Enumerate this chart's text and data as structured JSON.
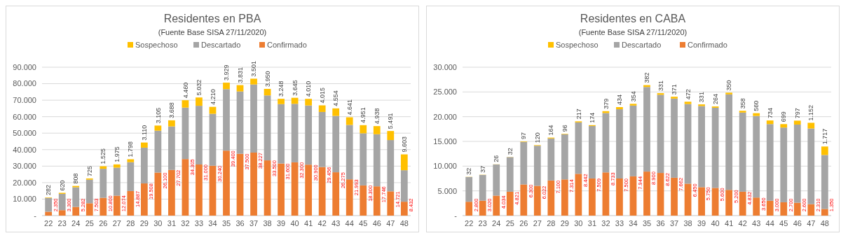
{
  "chart_data": [
    {
      "type": "bar",
      "title": "Residentes en PBA",
      "subtitle": "(Fuente Base SISA 27/11/2020)",
      "stacked": true,
      "legend": "top",
      "grid": "y",
      "categories": [
        "22",
        "23",
        "24",
        "25",
        "26",
        "27",
        "28",
        "29",
        "30",
        "31",
        "32",
        "33",
        "34",
        "35",
        "36",
        "37",
        "38",
        "39",
        "40",
        "41",
        "42",
        "43",
        "44",
        "45",
        "46",
        "47",
        "48"
      ],
      "ylim": [
        0,
        90000
      ],
      "yticks": [
        {
          "value": 0,
          "label": "-"
        },
        {
          "value": 10000,
          "label": "10.000"
        },
        {
          "value": 20000,
          "label": "20.000"
        },
        {
          "value": 30000,
          "label": "30.000"
        },
        {
          "value": 40000,
          "label": "40.000"
        },
        {
          "value": 50000,
          "label": "50.000"
        },
        {
          "value": 60000,
          "label": "60.000"
        },
        {
          "value": 70000,
          "label": "70.000"
        },
        {
          "value": 80000,
          "label": "80.000"
        },
        {
          "value": 90000,
          "label": "90.000"
        }
      ],
      "series": [
        {
          "name": "Confirmado",
          "color": "#ed7d31",
          "values": [
            2350,
            3300,
            5282,
            7503,
            10800,
            12074,
            14887,
            19508,
            26100,
            27702,
            34305,
            31000,
            30240,
            39400,
            37500,
            38227,
            33500,
            31600,
            32300,
            30900,
            29456,
            26275,
            21993,
            18300,
            17746,
            14721,
            8432
          ],
          "value_labels": [
            "2.350",
            "3.300",
            "5.282",
            "7.503",
            "10.800",
            "12.074",
            "14.887",
            "19.508",
            "26.100",
            "27.702",
            "34.305",
            "31.000",
            "30.240",
            "39.400",
            "37.500",
            "38.227",
            "33.500",
            "31.600",
            "32.300",
            "30.900",
            "29.456",
            "26.275",
            "21.993",
            "18.300",
            "17.746",
            "14.721",
            "8.432"
          ]
        },
        {
          "name": "Descartado",
          "color": "#a5a5a5",
          "values": [
            8400,
            9900,
            11900,
            14300,
            17600,
            17000,
            17500,
            21700,
            25400,
            26400,
            31200,
            35600,
            31500,
            37300,
            37800,
            41300,
            39400,
            36000,
            35500,
            35900,
            33400,
            34200,
            33000,
            31600,
            31600,
            31100,
            19100
          ]
        },
        {
          "name": "Sospechoso",
          "color": "#ffc000",
          "values": [
            282,
            620,
            808,
            725,
            1525,
            1975,
            1798,
            3110,
            3105,
            3688,
            4460,
            5032,
            4210,
            3929,
            3831,
            3501,
            3950,
            3248,
            3645,
            4010,
            4015,
            4554,
            4641,
            4951,
            4938,
            5491,
            9603
          ],
          "value_labels": [
            "282",
            "620",
            "808",
            "725",
            "1.525",
            "1.975",
            "1.798",
            "3.110",
            "3.105",
            "3.688",
            "4.460",
            "5.032",
            "4.210",
            "3.929",
            "3.831",
            "3.501",
            "3.950",
            "3.248",
            "3.645",
            "4.010",
            "4.015",
            "4.554",
            "4.641",
            "4.951",
            "4.938",
            "5.491",
            "9.603"
          ]
        }
      ]
    },
    {
      "type": "bar",
      "title": "Residentes en CABA",
      "subtitle": "(Fuente Base SISA 27/11/2020)",
      "stacked": true,
      "legend": "top",
      "grid": "y",
      "categories": [
        "22",
        "23",
        "24",
        "25",
        "26",
        "27",
        "28",
        "29",
        "30",
        "31",
        "32",
        "33",
        "34",
        "35",
        "36",
        "37",
        "38",
        "39",
        "40",
        "41",
        "42",
        "43",
        "44",
        "45",
        "46",
        "47",
        "48"
      ],
      "ylim": [
        0,
        30000
      ],
      "yticks": [
        {
          "value": 0,
          "label": "-"
        },
        {
          "value": 5000,
          "label": "5.000"
        },
        {
          "value": 10000,
          "label": "10.000"
        },
        {
          "value": 15000,
          "label": "15.000"
        },
        {
          "value": 20000,
          "label": "20.000"
        },
        {
          "value": 25000,
          "label": "25.000"
        },
        {
          "value": 30000,
          "label": "30.000"
        }
      ],
      "series": [
        {
          "name": "Confirmado",
          "color": "#ed7d31",
          "values": [
            2800,
            3020,
            4034,
            4821,
            6300,
            6022,
            7100,
            7314,
            8442,
            7509,
            8733,
            7500,
            7944,
            8900,
            8622,
            7662,
            6450,
            5750,
            5600,
            5200,
            4832,
            3650,
            3000,
            2700,
            2600,
            2310,
            1350
          ],
          "value_labels": [
            "2.800",
            "3.020",
            "4.034",
            "4.821",
            "6.300",
            "6.022",
            "7.100",
            "7.314",
            "8.442",
            "7.509",
            "8.733",
            "7.500",
            "7.944",
            "8.900",
            "8.622",
            "7.662",
            "6.450",
            "5.750",
            "5.600",
            "5.200",
            "4.832",
            "3.650",
            "3.000",
            "2.700",
            "2.600",
            "2.310",
            "1.350"
          ]
        },
        {
          "name": "Descartado",
          "color": "#a5a5a5",
          "values": [
            5000,
            5200,
            6300,
            7000,
            8600,
            8100,
            8500,
            9100,
            10400,
            10600,
            12000,
            14000,
            14300,
            17100,
            15800,
            16000,
            16100,
            16400,
            16200,
            19300,
            16000,
            16500,
            15500,
            15100,
            15800,
            15300,
            10900
          ]
        },
        {
          "name": "Sospechoso",
          "color": "#ffc000",
          "values": [
            32,
            37,
            26,
            32,
            97,
            120,
            164,
            96,
            217,
            174,
            379,
            434,
            354,
            382,
            331,
            371,
            472,
            331,
            264,
            350,
            358,
            560,
            734,
            699,
            797,
            1152,
            1717
          ],
          "value_labels": [
            "32",
            "37",
            "26",
            "32",
            "97",
            "120",
            "164",
            "96",
            "217",
            "174",
            "379",
            "434",
            "354",
            "382",
            "331",
            "371",
            "472",
            "331",
            "264",
            "350",
            "358",
            "560",
            "734",
            "699",
            "797",
            "1.152",
            "1.717"
          ]
        }
      ]
    }
  ]
}
